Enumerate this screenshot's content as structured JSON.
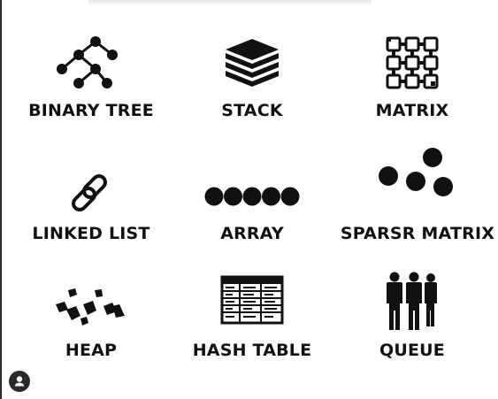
{
  "colors": {
    "ink": "#111111",
    "background": "#ffffff"
  },
  "items": [
    {
      "label": "BINARY TREE",
      "icon": "binary-tree-icon"
    },
    {
      "label": "STACK",
      "icon": "stack-icon"
    },
    {
      "label": "MATRIX",
      "icon": "matrix-icon"
    },
    {
      "label": "LINKED LIST",
      "icon": "linked-list-icon"
    },
    {
      "label": "ARRAY",
      "icon": "array-icon"
    },
    {
      "label": "SPARSR MATRIX",
      "icon": "sparse-matrix-icon"
    },
    {
      "label": "HEAP",
      "icon": "heap-icon"
    },
    {
      "label": "HASH TABLE",
      "icon": "hash-table-icon"
    },
    {
      "label": "QUEUE",
      "icon": "queue-icon"
    }
  ],
  "account_button": {
    "icon": "user-icon"
  }
}
